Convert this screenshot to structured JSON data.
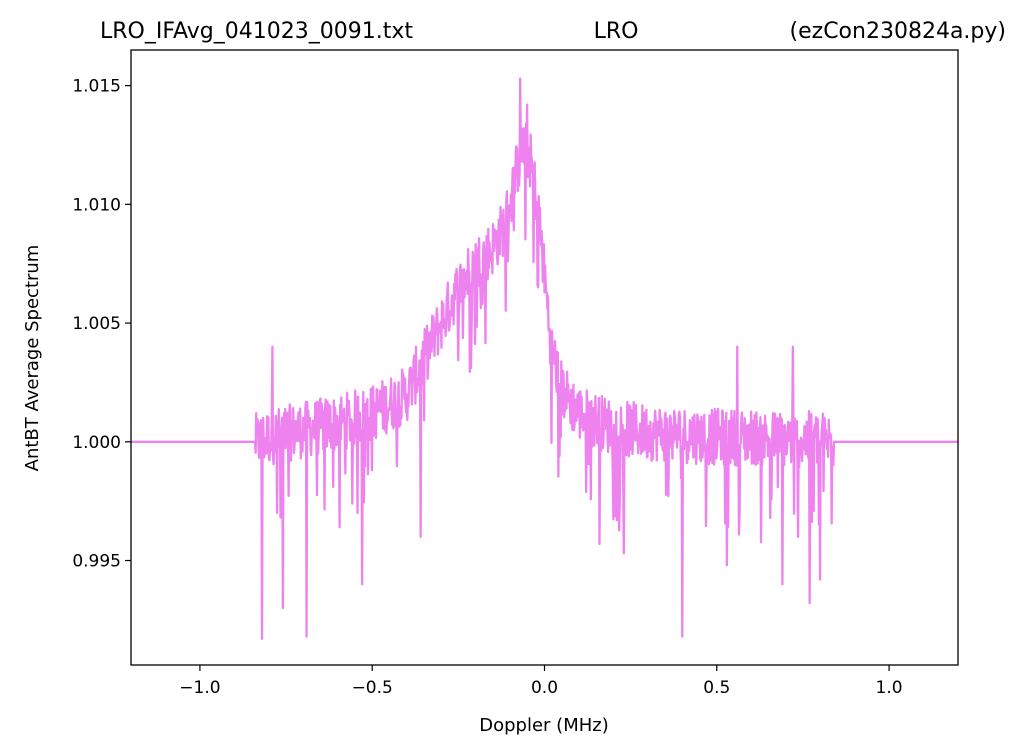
{
  "chart_data": {
    "type": "line",
    "title_left": "LRO_IFAvg_041023_0091.txt",
    "title_center": "LRO",
    "title_right": "(ezCon230824a.py)",
    "xlabel": "Doppler (MHz)",
    "ylabel": "AntBT Average Spectrum",
    "xlim": [
      -1.2,
      1.2
    ],
    "ylim": [
      0.9906,
      1.0165
    ],
    "xticks": [
      -1.0,
      -0.5,
      0.0,
      0.5,
      1.0
    ],
    "xtick_labels": [
      "−1.0",
      "−0.5",
      "0.0",
      "0.5",
      "1.0"
    ],
    "yticks": [
      0.995,
      1.0,
      1.005,
      1.01,
      1.015
    ],
    "ytick_labels": [
      "0.995",
      "1.000",
      "1.005",
      "1.010",
      "1.015"
    ],
    "grid": false,
    "series": [
      {
        "color": "#ee82ee",
        "baseline": 1.0,
        "flat_ranges": [
          [
            -1.2,
            -0.84
          ],
          [
            0.84,
            1.2
          ]
        ],
        "envelope_x": [
          -0.84,
          -0.8,
          -0.7,
          -0.6,
          -0.5,
          -0.4,
          -0.35,
          -0.3,
          -0.25,
          -0.2,
          -0.15,
          -0.12,
          -0.1,
          -0.08,
          -0.06,
          -0.04,
          -0.02,
          0.0,
          0.02,
          0.05,
          0.1,
          0.2,
          0.3,
          0.4,
          0.5,
          0.6,
          0.7,
          0.8,
          0.84
        ],
        "envelope_y": [
          1.0,
          1.0002,
          1.0005,
          1.0008,
          1.0012,
          1.002,
          1.0035,
          1.005,
          1.0065,
          1.0075,
          1.0082,
          1.009,
          1.01,
          1.0115,
          1.0125,
          1.0118,
          1.01,
          1.007,
          1.004,
          1.0022,
          1.0012,
          1.0006,
          1.0004,
          1.0003,
          1.0002,
          1.0002,
          1.0001,
          1.0001,
          1.0
        ],
        "noise_amplitude": 0.0012,
        "spikes": [
          {
            "x": -0.82,
            "y": 0.9917
          },
          {
            "x": -0.76,
            "y": 0.993
          },
          {
            "x": -0.69,
            "y": 0.9918
          },
          {
            "x": -0.53,
            "y": 0.994
          },
          {
            "x": -0.36,
            "y": 0.996
          },
          {
            "x": 0.16,
            "y": 0.9957
          },
          {
            "x": 0.23,
            "y": 0.9953
          },
          {
            "x": 0.4,
            "y": 0.9918
          },
          {
            "x": 0.53,
            "y": 0.9948
          },
          {
            "x": 0.69,
            "y": 0.994
          },
          {
            "x": 0.77,
            "y": 0.9932
          },
          {
            "x": 0.8,
            "y": 0.9942
          },
          {
            "x": -0.79,
            "y": 1.004
          },
          {
            "x": -0.07,
            "y": 1.0153
          },
          {
            "x": -0.05,
            "y": 1.0142
          },
          {
            "x": 0.56,
            "y": 1.004
          },
          {
            "x": 0.72,
            "y": 1.004
          }
        ]
      }
    ]
  }
}
